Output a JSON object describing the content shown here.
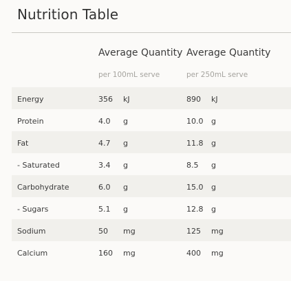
{
  "title": "Nutrition Table",
  "columns": [
    {
      "heading": "Average Quantity",
      "sub": "per 100mL serve"
    },
    {
      "heading": "Average Quantity",
      "sub": "per 250mL serve"
    }
  ],
  "rows": [
    {
      "label": "Energy",
      "v1": "356",
      "u1": "kJ",
      "v2": "890",
      "u2": "kJ"
    },
    {
      "label": "Protein",
      "v1": "4.0",
      "u1": "g",
      "v2": "10.0",
      "u2": "g"
    },
    {
      "label": "Fat",
      "v1": "4.7",
      "u1": "g",
      "v2": "11.8",
      "u2": "g"
    },
    {
      "label": "- Saturated",
      "v1": "3.4",
      "u1": "g",
      "v2": "8.5",
      "u2": "g"
    },
    {
      "label": "Carbohydrate",
      "v1": "6.0",
      "u1": "g",
      "v2": "15.0",
      "u2": "g"
    },
    {
      "label": "- Sugars",
      "v1": "5.1",
      "u1": "g",
      "v2": "12.8",
      "u2": "g"
    },
    {
      "label": "Sodium",
      "v1": "50",
      "u1": "mg",
      "v2": "125",
      "u2": "mg"
    },
    {
      "label": "Calcium",
      "v1": "160",
      "u1": "mg",
      "v2": "400",
      "u2": "mg"
    }
  ]
}
